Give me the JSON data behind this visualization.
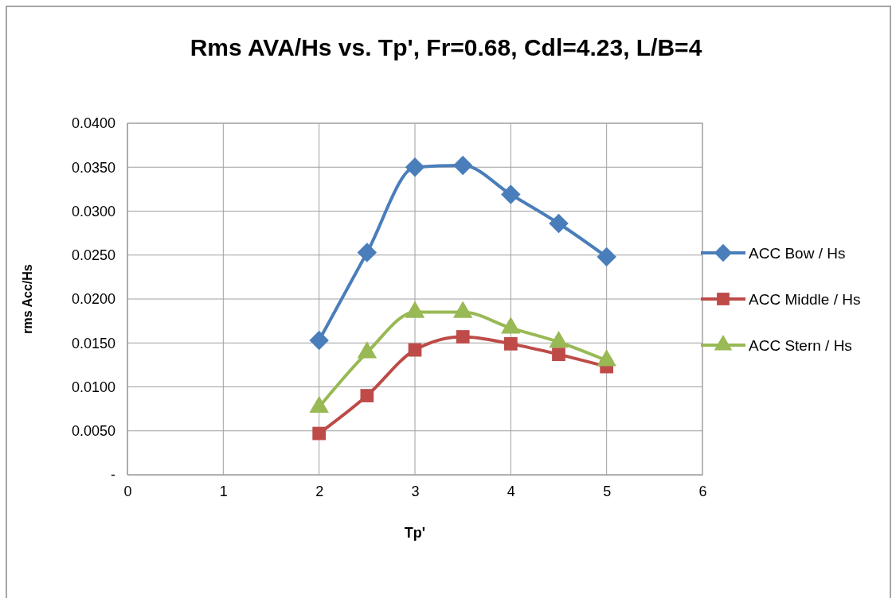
{
  "chart_data": {
    "type": "line",
    "title": "Rms AVA/Hs vs. Tp', Fr=0.68, Cdl=4.23, L/B=4",
    "xlabel": "Tp'",
    "ylabel": "rms Acc/Hs",
    "x": [
      2,
      2.5,
      3,
      3.5,
      4,
      4.5,
      5
    ],
    "series": [
      {
        "name": "ACC Bow / Hs",
        "color": "#4a7ebb",
        "marker": "diamond",
        "values": [
          0.0153,
          0.0253,
          0.035,
          0.0352,
          0.0319,
          0.0286,
          0.0248
        ]
      },
      {
        "name": "ACC Middle / Hs",
        "color": "#be4b48",
        "marker": "square",
        "values": [
          0.0047,
          0.009,
          0.0142,
          0.0157,
          0.0149,
          0.0137,
          0.0123
        ]
      },
      {
        "name": "ACC Stern / Hs",
        "color": "#98b954",
        "marker": "triangle",
        "values": [
          0.0077,
          0.0139,
          0.0185,
          0.0185,
          0.0167,
          0.0151,
          0.013
        ]
      }
    ],
    "xlim": [
      0,
      6
    ],
    "xticks": [
      0,
      1,
      2,
      3,
      4,
      5,
      6
    ],
    "ylim": [
      0,
      0.04
    ],
    "yticks": [
      {
        "value": 0,
        "label": "-"
      },
      {
        "value": 0.005,
        "label": "0.0050"
      },
      {
        "value": 0.01,
        "label": "0.0100"
      },
      {
        "value": 0.015,
        "label": "0.0150"
      },
      {
        "value": 0.02,
        "label": "0.0200"
      },
      {
        "value": 0.025,
        "label": "0.0250"
      },
      {
        "value": 0.03,
        "label": "0.0300"
      },
      {
        "value": 0.035,
        "label": "0.0350"
      },
      {
        "value": 0.04,
        "label": "0.0400"
      }
    ],
    "grid": true,
    "legend": "right",
    "line_style": "solid"
  }
}
